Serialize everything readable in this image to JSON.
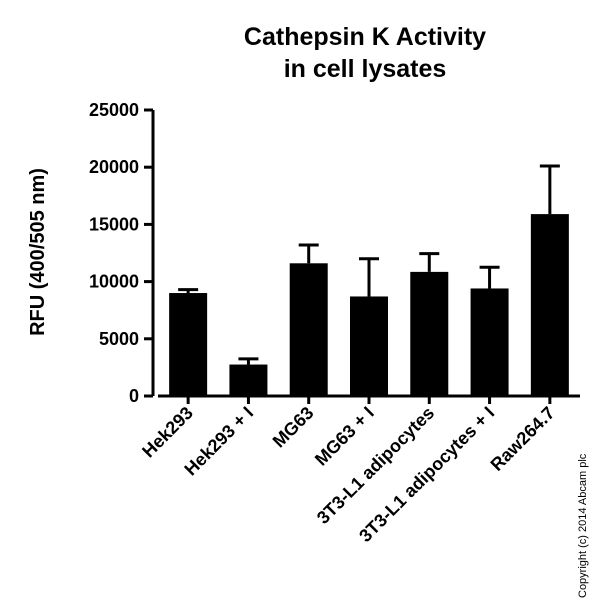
{
  "chart_data": {
    "type": "bar",
    "title": [
      "Cathepsin K Activity",
      "in cell lysates"
    ],
    "xlabel": "",
    "ylabel": "RFU (400/505 nm)",
    "ylim": [
      0,
      25000
    ],
    "yticks": [
      "0",
      "5000",
      "10000",
      "15000",
      "20000",
      "25000"
    ],
    "categories": [
      "Hek293",
      "Hek293 + I",
      "MG63",
      "MG63 + I",
      "3T3-L1 adipocytes",
      "3T3-L1 adipocytes + I",
      "Raw264.7"
    ],
    "values": [
      9000,
      2750,
      11600,
      8700,
      10850,
      9400,
      15900
    ],
    "errors": [
      300,
      500,
      1600,
      3300,
      1600,
      1850,
      4200
    ],
    "bar_color": "#000000",
    "legend": "none",
    "grid": false
  },
  "copyright": "Copyright (c) 2014 Abcam plc"
}
